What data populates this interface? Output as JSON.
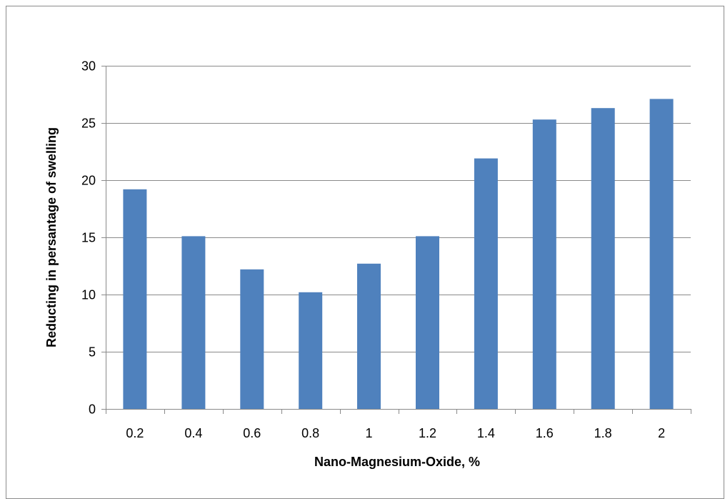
{
  "chart_data": {
    "type": "bar",
    "title": "",
    "xlabel": "Nano-Magnesium-Oxide, %",
    "ylabel": "Reducting in persantage of swelling",
    "categories": [
      "0.2",
      "0.4",
      "0.6",
      "0.8",
      "1",
      "1.2",
      "1.4",
      "1.6",
      "1.8",
      "2"
    ],
    "values": [
      19.2,
      15.1,
      12.2,
      10.2,
      12.7,
      15.1,
      21.9,
      25.3,
      26.3,
      27.1
    ],
    "ylim": [
      0,
      30
    ],
    "yticks": [
      "0",
      "5",
      "10",
      "15",
      "20",
      "25",
      "30"
    ],
    "grid": true,
    "legend": "none",
    "bar_color": "#4f81bd"
  }
}
